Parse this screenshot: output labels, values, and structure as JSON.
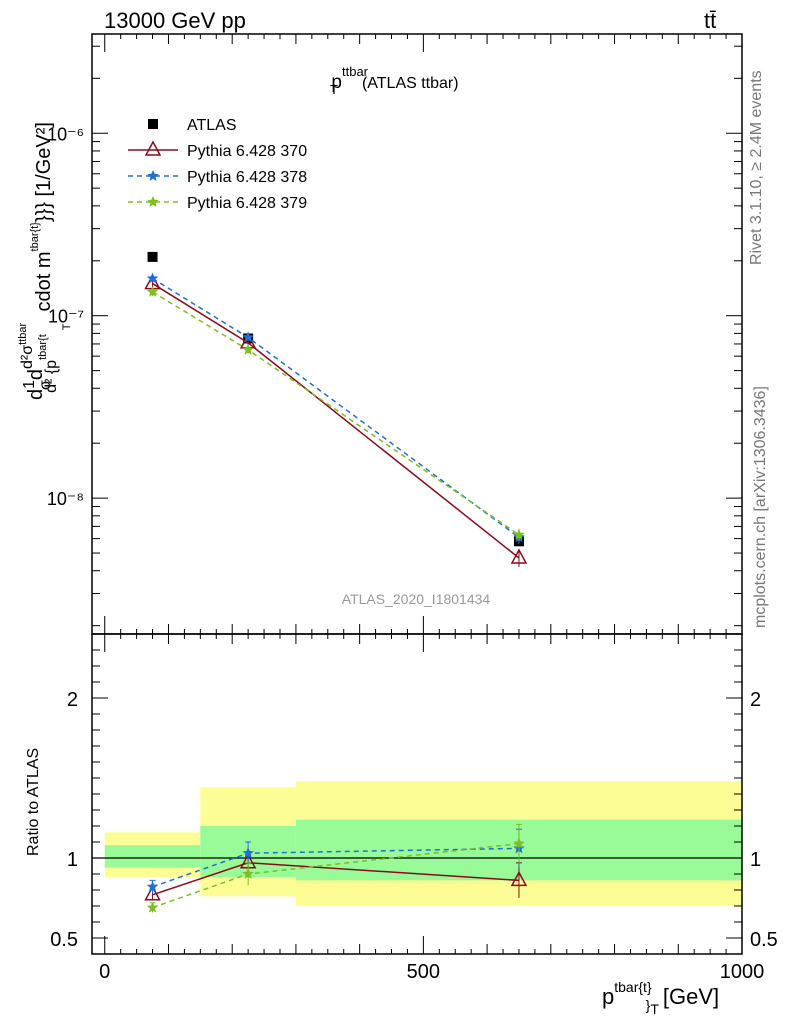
{
  "header": {
    "left": "13000 GeV pp",
    "right": "tt̄"
  },
  "side_labels": {
    "rivet": "Rivet 3.1.10, ≥ 2.4M events",
    "mcplots": "mcplots.cern.ch [arXiv:1306.3436]"
  },
  "colors": {
    "atlas": "#000000",
    "pythia370": "#8b0a1e",
    "pythia378": "#1f6fd6",
    "pythia379": "#7cbf1e",
    "band_outer": "#fdfd96",
    "band_inner": "#98fb98"
  },
  "chart_data": [
    {
      "type": "line",
      "title": "p_T^{ttbar} (ATLAS ttbar)",
      "title_main": "p",
      "title_sup": "ttbar",
      "title_sub": "T",
      "title_rest": "(ATLAS ttbar)",
      "watermark": "ATLAS_2020_I1801434",
      "ylabel": "d1/σ dσ^{ttbar} / d^2 {p_T^{tbar{t}}} cdot m^{tbar{t}}}} [1/GeV²]",
      "ylabel_parts": {
        "d_frac_top": "1",
        "d_frac_bot": "σ",
        "sigma_num": "d²σ",
        "sigma_sup": "ttbar",
        "den": "d² {p",
        "den_sup": "tbar{t",
        "den_sub": "T",
        "cdot": "cdot m",
        "cdot_sup": "tbar{t}",
        "tail": "}}} [1/GeV²]"
      },
      "xlim": [
        -20,
        1000
      ],
      "ylim": [
        1.8e-09,
        3.5e-06
      ],
      "yscale": "log",
      "ytick_labels": [
        "10⁻⁸",
        "10⁻⁷",
        "10⁻⁶"
      ],
      "ytick_values": [
        1e-08,
        1e-07,
        1e-06
      ],
      "legend_placement": "top-left",
      "series": [
        {
          "name": "ATLAS",
          "marker": "square",
          "x": [
            75,
            225,
            650
          ],
          "y": [
            2.1e-07,
            7.5e-08,
            5.8e-09
          ],
          "yerr": [
            0,
            0,
            0
          ]
        },
        {
          "name": "Pythia 6.428 370",
          "marker": "triangle",
          "dash": "solid",
          "x": [
            75,
            225,
            650
          ],
          "y": [
            1.5e-07,
            7.1e-08,
            4.7e-09
          ],
          "yerr": [
            7e-09,
            3e-09,
            5e-10
          ]
        },
        {
          "name": "Pythia 6.428 378",
          "marker": "star",
          "dash": "dashed",
          "x": [
            75,
            225,
            650
          ],
          "y": [
            1.6e-07,
            7.6e-08,
            6.1e-09
          ],
          "yerr": [
            7e-09,
            3e-09,
            5e-10
          ]
        },
        {
          "name": "Pythia 6.428 379",
          "marker": "star",
          "dash": "dashed",
          "x": [
            75,
            225,
            650
          ],
          "y": [
            1.35e-07,
            6.5e-08,
            6.3e-09
          ],
          "yerr": [
            7e-09,
            3e-09,
            5e-10
          ]
        }
      ]
    },
    {
      "type": "line",
      "xlabel": "p^{tbar{t}}_T [GeV]",
      "xlabel_main": "p",
      "xlabel_sup": "tbar{t}",
      "xlabel_sub": "}",
      "xlabel_sub2": "T",
      "xlabel_unit": "[GeV]",
      "ylabel": "Ratio to ATLAS",
      "xlim": [
        -20,
        1000
      ],
      "ylim": [
        0.4,
        2.4
      ],
      "ytick_labels": [
        "0.5",
        "1",
        "2"
      ],
      "ytick_values": [
        0.5,
        1,
        2
      ],
      "xtick_labels": [
        "0",
        "500",
        "1000"
      ],
      "xtick_values": [
        0,
        500,
        1000
      ],
      "bands": [
        {
          "x0": 0,
          "x1": 150,
          "outer": [
            0.88,
            1.16
          ],
          "inner": [
            0.94,
            1.08
          ]
        },
        {
          "x0": 150,
          "x1": 300,
          "outer": [
            0.76,
            1.44
          ],
          "inner": [
            0.88,
            1.2
          ]
        },
        {
          "x0": 300,
          "x1": 1000,
          "outer": [
            0.7,
            1.48
          ],
          "inner": [
            0.86,
            1.24
          ]
        }
      ],
      "series": [
        {
          "name": "Pythia 6.428 370",
          "x": [
            75,
            225,
            650
          ],
          "y": [
            0.77,
            0.97,
            0.86
          ],
          "yerr": [
            0.03,
            0.05,
            0.11
          ]
        },
        {
          "name": "Pythia 6.428 378",
          "x": [
            75,
            225,
            650
          ],
          "y": [
            0.82,
            1.03,
            1.06
          ],
          "yerr": [
            0.04,
            0.07,
            0.12
          ]
        },
        {
          "name": "Pythia 6.428 379",
          "x": [
            75,
            225,
            650
          ],
          "y": [
            0.69,
            0.9,
            1.09
          ],
          "yerr": [
            0.03,
            0.07,
            0.12
          ]
        }
      ]
    }
  ]
}
